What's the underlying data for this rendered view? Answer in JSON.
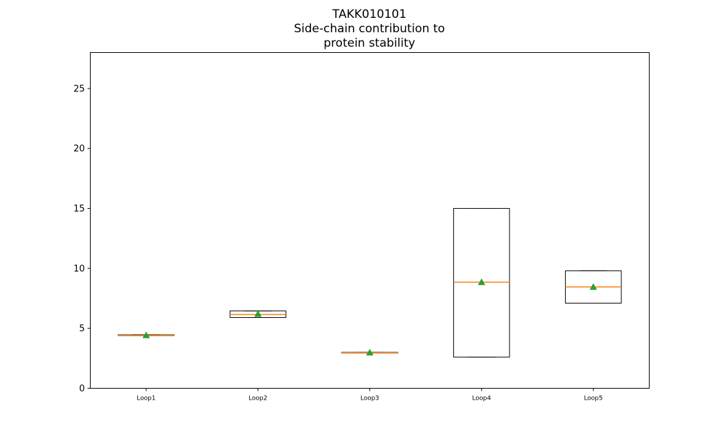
{
  "chart_data": {
    "type": "box",
    "title_lines": [
      "TAKK010101",
      "Side-chain contribution to",
      "protein stability"
    ],
    "xlabel": "",
    "ylabel": "",
    "ylim": [
      0,
      28
    ],
    "yticks": [
      0,
      5,
      10,
      15,
      20,
      25
    ],
    "grid": false,
    "categories": [
      "Loop1",
      "Loop2",
      "Loop3",
      "Loop4",
      "Loop5"
    ],
    "boxes": [
      {
        "label": "Loop1",
        "whisker_low": 4.4,
        "q1": 4.4,
        "median": 4.4,
        "q3": 4.45,
        "whisker_high": 4.45,
        "mean": 4.42
      },
      {
        "label": "Loop2",
        "whisker_low": 5.9,
        "q1": 5.9,
        "median": 6.15,
        "q3": 6.45,
        "whisker_high": 6.45,
        "mean": 6.2
      },
      {
        "label": "Loop3",
        "whisker_low": 2.95,
        "q1": 2.95,
        "median": 2.97,
        "q3": 3.0,
        "whisker_high": 3.0,
        "mean": 2.98
      },
      {
        "label": "Loop4",
        "whisker_low": 2.6,
        "q1": 2.6,
        "median": 8.85,
        "q3": 15.0,
        "whisker_high": 15.0,
        "mean": 8.85
      },
      {
        "label": "Loop5",
        "whisker_low": 7.1,
        "q1": 7.1,
        "median": 8.45,
        "q3": 9.8,
        "whisker_high": 9.8,
        "mean": 8.45
      }
    ],
    "colors": {
      "box": "#000000",
      "median": "#ff7f0e",
      "mean": "#2ca02c"
    }
  }
}
